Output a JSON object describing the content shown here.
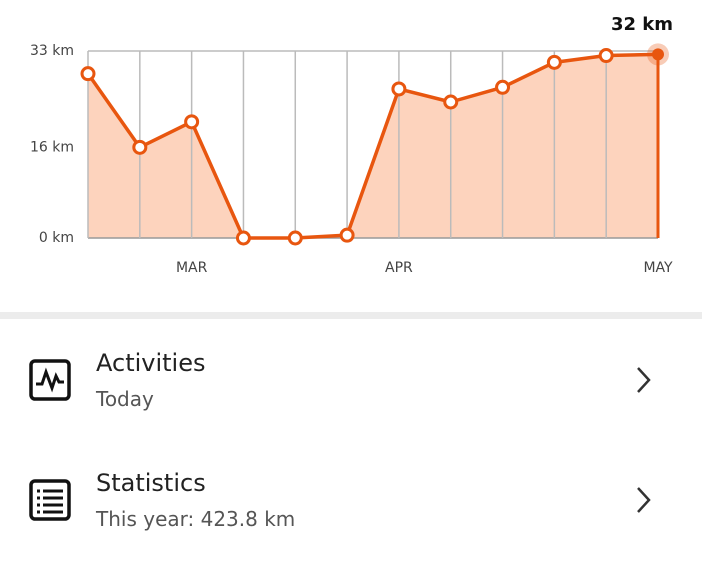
{
  "chart_data": {
    "type": "line",
    "categories": [
      null,
      null,
      "MAR",
      null,
      null,
      null,
      "APR",
      null,
      null,
      null,
      null,
      "MAY"
    ],
    "series": [
      {
        "color": "#e8560f",
        "fill": "#fdd3bd",
        "values": [
          29,
          16,
          20.5,
          0,
          0,
          0.5,
          26.3,
          24,
          26.6,
          31,
          32.2,
          32.4
        ],
        "value_labels": [
          null,
          null,
          null,
          null,
          null,
          null,
          null,
          null,
          null,
          null,
          null,
          "32 km"
        ]
      }
    ],
    "ylim": [
      0,
      33
    ],
    "yticks": [
      {
        "value": 0,
        "label": "0 km"
      },
      {
        "value": 16,
        "label": "16 km"
      },
      {
        "value": 33,
        "label": "33 km"
      }
    ],
    "grid": "x"
  },
  "menu": [
    {
      "title": "Activities",
      "subtitle": "Today"
    },
    {
      "title": "Statistics",
      "subtitle": "This year: 423.8 km"
    }
  ]
}
